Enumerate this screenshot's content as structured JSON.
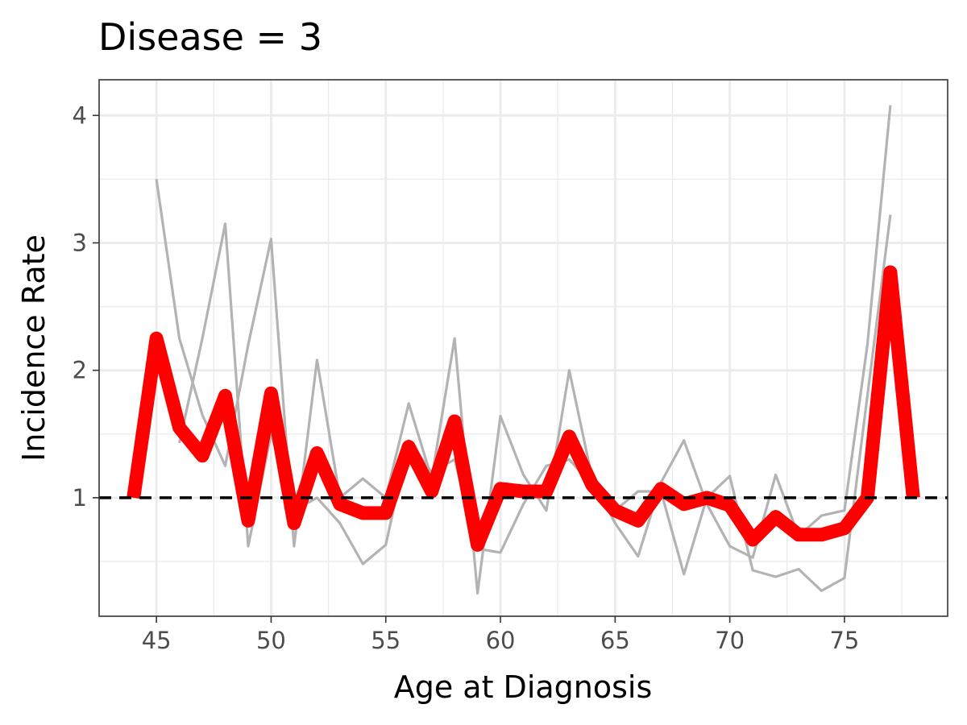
{
  "chart_data": {
    "type": "line",
    "title": "Disease = 3",
    "xlabel": "Age at Diagnosis",
    "ylabel": "Incidence Rate",
    "xlim": [
      42.5,
      79.5
    ],
    "ylim": [
      0.07,
      4.28
    ],
    "xticks": [
      45,
      50,
      55,
      60,
      65,
      70,
      75
    ],
    "yticks": [
      1,
      2,
      3,
      4
    ],
    "grid": true,
    "legend": "none",
    "reference_line": {
      "y": 1,
      "style": "dashed",
      "color": "#000000"
    },
    "series": [
      {
        "color": "#ff0000",
        "x": [
          44,
          45,
          46,
          47,
          48,
          49,
          50,
          51,
          52,
          53,
          54,
          55,
          56,
          57,
          58,
          59,
          60,
          61,
          62,
          63,
          64,
          65,
          66,
          67,
          68,
          69,
          70,
          71,
          72,
          73,
          74,
          75,
          76,
          77,
          78
        ],
        "y": [
          1.0,
          2.25,
          1.55,
          1.33,
          1.8,
          0.82,
          1.82,
          0.8,
          1.35,
          0.95,
          0.88,
          0.88,
          1.4,
          1.05,
          1.6,
          0.63,
          1.07,
          1.05,
          1.05,
          1.48,
          1.1,
          0.9,
          0.82,
          1.07,
          0.95,
          1.0,
          0.94,
          0.67,
          0.85,
          0.71,
          0.71,
          0.76,
          1.0,
          2.77,
          1.0
        ]
      },
      {
        "color": "#b3b3b3",
        "x": [
          45,
          46,
          47,
          48,
          49,
          50,
          51,
          52,
          53,
          54,
          55,
          56,
          57,
          58,
          59,
          60,
          61,
          62,
          63,
          64,
          65,
          66,
          67,
          68,
          69,
          70,
          71,
          72,
          73,
          74,
          75,
          76,
          77
        ],
        "y": [
          3.5,
          2.25,
          1.65,
          1.25,
          2.2,
          3.03,
          0.62,
          2.08,
          1.0,
          1.15,
          1.0,
          1.74,
          1.15,
          2.25,
          0.25,
          1.64,
          1.18,
          0.9,
          2.0,
          1.15,
          0.8,
          0.54,
          1.12,
          1.45,
          0.95,
          0.62,
          0.53,
          1.18,
          0.7,
          0.86,
          0.9,
          2.2,
          4.08
        ]
      },
      {
        "color": "#b3b3b3",
        "x": [
          46,
          47,
          48,
          49,
          50,
          51,
          52,
          53,
          54,
          55,
          56,
          57,
          58,
          59,
          60,
          61,
          62,
          63,
          64,
          65,
          66,
          67,
          68,
          69,
          70,
          71,
          72,
          73,
          74,
          75,
          76,
          77
        ],
        "y": [
          1.43,
          2.25,
          3.15,
          0.62,
          1.5,
          0.9,
          1.0,
          0.8,
          0.48,
          0.63,
          1.45,
          1.2,
          1.3,
          0.6,
          0.57,
          0.95,
          1.25,
          1.3,
          1.1,
          0.9,
          1.05,
          1.05,
          0.4,
          1.0,
          1.17,
          0.43,
          0.38,
          0.44,
          0.27,
          0.37,
          1.8,
          3.22
        ]
      }
    ]
  }
}
